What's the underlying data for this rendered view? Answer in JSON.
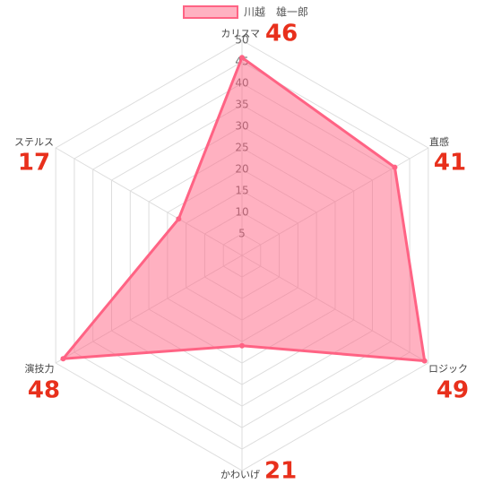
{
  "chart_data": {
    "type": "radar",
    "categories": [
      "カリスマ",
      "直感",
      "ロジック",
      "かわいげ",
      "演技力",
      "ステルス"
    ],
    "series": [
      {
        "name": "川越　雄一郎",
        "color": "#ff6384",
        "values": [
          46,
          41,
          49,
          21,
          48,
          17
        ]
      }
    ],
    "rlim": [
      0,
      50
    ],
    "rticks": [
      5,
      10,
      15,
      20,
      25,
      30,
      35,
      40,
      45,
      50
    ],
    "grid": true,
    "legend": "top"
  }
}
